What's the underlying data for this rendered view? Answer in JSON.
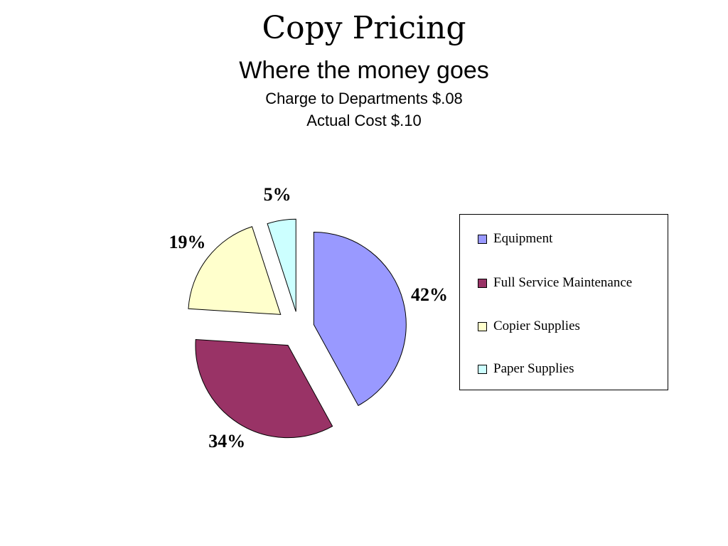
{
  "slide": {
    "title": "Copy Pricing",
    "subtitle": "Where the money goes",
    "line1": "Charge to Departments $.08",
    "line2": "Actual Cost $.10"
  },
  "chart_data": {
    "type": "pie",
    "exploded": true,
    "legend_position": "right",
    "categories": [
      "Equipment",
      "Full Service Maintenance",
      "Copier Supplies",
      "Paper Supplies"
    ],
    "values": [
      42,
      34,
      19,
      5
    ],
    "labels": [
      "42%",
      "34%",
      "19%",
      "5%"
    ],
    "colors": [
      "#9999ff",
      "#993366",
      "#ffffcc",
      "#ccffff"
    ]
  }
}
